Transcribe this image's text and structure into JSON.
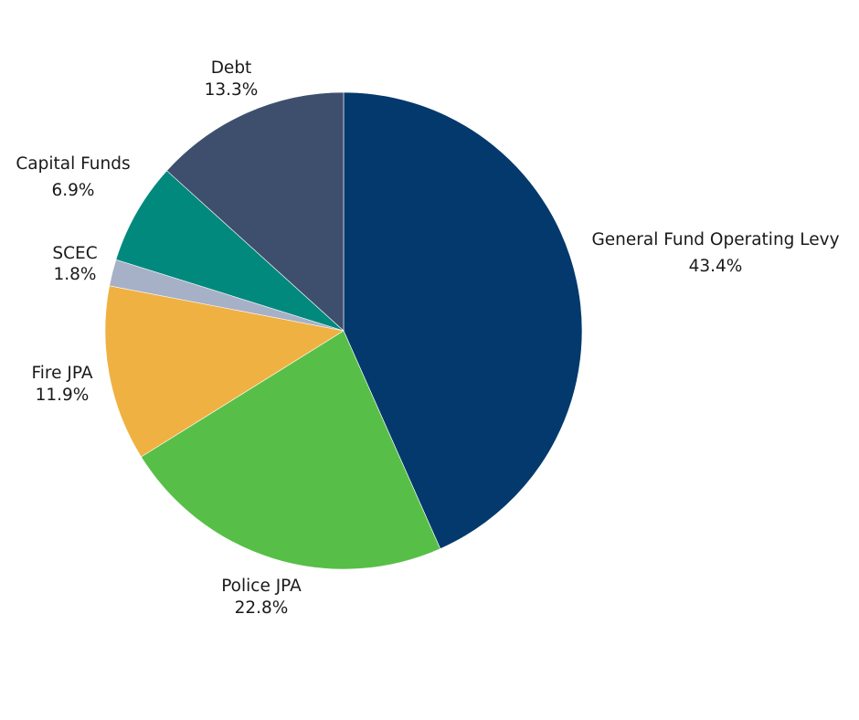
{
  "chart_data": {
    "type": "pie",
    "title": "",
    "slices": [
      {
        "name": "General Fund Operating Levy",
        "value": 43.4,
        "label": "43.4%",
        "color": "#03396c"
      },
      {
        "name": "Police JPA",
        "value": 22.8,
        "label": "22.8%",
        "color": "#57bf47"
      },
      {
        "name": "Fire JPA",
        "value": 11.9,
        "label": "11.9%",
        "color": "#efb142"
      },
      {
        "name": "SCEC",
        "value": 1.8,
        "label": "1.8%",
        "color": "#a6b0c6"
      },
      {
        "name": "Capital Funds",
        "value": 6.9,
        "label": "6.9%",
        "color": "#02897d"
      },
      {
        "name": "Debt",
        "value": 13.3,
        "label": "13.3%",
        "color": "#3e4f6e"
      }
    ],
    "start_angle": "12 o'clock",
    "direction": "clockwise",
    "legend": "none (direct labels)"
  }
}
